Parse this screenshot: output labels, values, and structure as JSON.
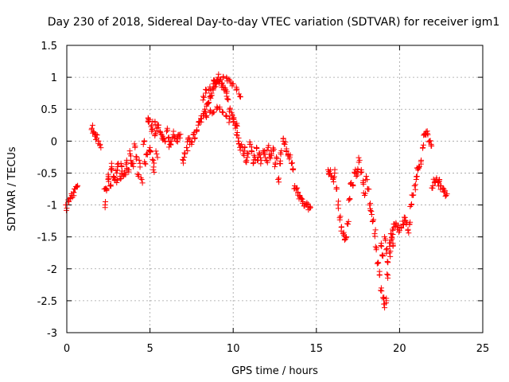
{
  "chart_data": {
    "type": "scatter",
    "title": "Day 230 of 2018, Sidereal Day-to-day VTEC variation (SDTVAR) for receiver igm1",
    "xlabel": "GPS time / hours",
    "ylabel": "SDTVAR / TECUs",
    "xlim": [
      0,
      25
    ],
    "ylim": [
      -3,
      1.5
    ],
    "xticks": [
      0,
      5,
      10,
      15,
      20,
      25
    ],
    "xtick_labels": [
      "0",
      "5",
      "10",
      "15",
      "20",
      "25"
    ],
    "yticks": [
      -3,
      -2.5,
      -2,
      -1.5,
      -1,
      -0.5,
      0,
      0.5,
      1,
      1.5
    ],
    "ytick_labels": [
      "-3",
      "-2.5",
      "-2",
      "-1.5",
      "-1",
      "-0.5",
      "0",
      "0.5",
      "1",
      "1.5"
    ],
    "grid": true,
    "marker": "+",
    "color": "#ff0000",
    "series": [
      {
        "name": "igm1",
        "x": [
          0.0,
          0.1,
          0.2,
          0.3,
          0.4,
          0.5,
          0.6,
          1.5,
          1.6,
          1.7,
          1.8,
          1.9,
          2.0,
          2.3,
          2.4,
          2.5,
          2.6,
          2.7,
          2.8,
          2.9,
          3.0,
          3.1,
          3.2,
          3.3,
          3.4,
          3.5,
          3.6,
          3.7,
          3.8,
          3.9,
          4.0,
          4.1,
          4.2,
          4.3,
          4.4,
          4.5,
          4.6,
          4.7,
          4.8,
          4.9,
          5.0,
          5.1,
          5.2,
          5.3,
          5.4,
          5.5,
          5.6,
          5.7,
          5.8,
          5.9,
          6.0,
          6.1,
          6.2,
          6.3,
          6.4,
          6.5,
          6.6,
          6.7,
          6.8,
          7.0,
          7.1,
          7.2,
          7.3,
          7.4,
          7.5,
          7.6,
          7.7,
          7.8,
          7.9,
          8.0,
          8.1,
          8.2,
          8.3,
          8.4,
          8.5,
          8.6,
          8.7,
          8.8,
          8.9,
          9.0,
          9.1,
          9.2,
          9.3,
          9.4,
          9.5,
          9.6,
          9.7,
          9.8,
          9.9,
          10.0,
          10.1,
          10.2,
          10.3,
          10.4,
          10.5,
          10.6,
          10.7,
          10.8,
          10.9,
          11.0,
          11.1,
          11.2,
          11.3,
          11.4,
          11.5,
          11.6,
          11.7,
          11.8,
          11.9,
          12.0,
          12.1,
          12.2,
          12.3,
          12.4,
          12.5,
          12.6,
          12.7,
          12.8,
          12.9,
          13.0,
          13.1,
          13.2,
          13.3,
          13.4,
          13.5,
          13.6,
          13.7,
          13.8,
          13.9,
          14.0,
          14.1,
          14.2,
          14.3,
          14.4,
          14.5,
          14.6,
          15.7,
          15.8,
          15.9,
          16.0,
          16.1,
          16.2,
          16.3,
          16.4,
          16.5,
          16.6,
          16.7,
          16.8,
          16.9,
          17.0,
          17.1,
          17.2,
          17.3,
          17.4,
          17.5,
          17.6,
          17.7,
          17.8,
          17.9,
          18.0,
          18.1,
          18.2,
          18.3,
          18.4,
          18.5,
          18.6,
          18.7,
          18.8,
          18.9,
          19.0,
          19.1,
          19.2,
          19.3,
          19.4,
          19.5,
          19.6,
          19.7,
          19.8,
          19.9,
          20.0,
          20.1,
          20.2,
          20.3,
          20.4,
          20.5,
          20.6,
          20.7,
          20.8,
          20.9,
          21.0,
          21.1,
          21.2,
          21.3,
          21.4,
          21.5,
          21.6,
          21.7,
          21.8,
          21.9,
          22.0,
          22.1,
          22.2,
          22.3,
          22.4,
          22.5,
          22.6,
          22.7,
          22.8,
          8.4,
          8.6,
          8.8,
          9.0,
          9.2,
          9.4,
          9.6,
          9.8,
          10.0,
          10.2,
          8.2,
          8.4,
          8.6,
          8.8,
          9.0,
          9.2,
          9.4,
          9.6,
          9.8,
          10.0,
          10.2,
          10.4,
          18.9,
          19.0,
          19.1,
          19.2,
          19.3,
          19.4,
          19.5,
          19.6,
          4.9,
          5.0,
          5.1,
          5.2,
          5.3,
          5.4,
          2.3,
          2.5,
          2.7,
          3.0,
          3.3,
          3.6
        ],
        "y": [
          -1.05,
          -0.95,
          -0.9,
          -0.85,
          -0.8,
          -0.75,
          -0.72,
          0.2,
          0.15,
          0.1,
          0.05,
          0.0,
          -0.05,
          -1.0,
          -0.75,
          -0.6,
          -0.7,
          -0.45,
          -0.55,
          -0.6,
          -0.5,
          -0.35,
          -0.55,
          -0.4,
          -0.55,
          -0.5,
          -0.3,
          -0.45,
          -0.2,
          -0.35,
          -0.4,
          -0.1,
          -0.25,
          -0.55,
          -0.35,
          -0.6,
          -0.05,
          -0.35,
          -0.2,
          0.3,
          -0.15,
          0.25,
          -0.45,
          0.3,
          0.2,
          0.25,
          0.15,
          0.1,
          0.05,
          0.0,
          0.15,
          0.05,
          -0.05,
          0.0,
          0.1,
          0.05,
          0.0,
          0.1,
          0.05,
          -0.3,
          -0.2,
          -0.1,
          0.05,
          0.0,
          -0.05,
          0.1,
          0.05,
          0.15,
          0.25,
          0.3,
          0.35,
          0.4,
          0.5,
          0.55,
          0.6,
          0.7,
          0.75,
          0.8,
          0.9,
          0.95,
          1.0,
          0.95,
          0.9,
          0.85,
          0.8,
          0.75,
          0.65,
          0.5,
          0.45,
          0.35,
          0.25,
          0.1,
          0.0,
          -0.1,
          -0.05,
          -0.2,
          -0.1,
          -0.3,
          -0.2,
          -0.05,
          -0.15,
          -0.35,
          -0.25,
          -0.1,
          -0.25,
          -0.2,
          -0.3,
          -0.15,
          -0.2,
          -0.3,
          -0.1,
          -0.25,
          -0.2,
          -0.15,
          -0.4,
          -0.25,
          -0.6,
          -0.35,
          -0.15,
          0.0,
          -0.05,
          -0.15,
          -0.2,
          -0.25,
          -0.35,
          -0.45,
          -0.7,
          -0.75,
          -0.8,
          -0.85,
          -0.9,
          -0.95,
          -0.98,
          -1.0,
          -1.03,
          -1.05,
          -0.45,
          -0.5,
          -0.55,
          -0.6,
          -0.5,
          -0.75,
          -1.0,
          -1.2,
          -1.35,
          -1.45,
          -1.55,
          -1.5,
          -1.3,
          -0.9,
          -0.65,
          -0.7,
          -0.5,
          -0.55,
          -0.45,
          -0.3,
          -0.45,
          -0.65,
          -0.85,
          -0.55,
          -0.75,
          -1.0,
          -1.1,
          -1.25,
          -1.45,
          -1.7,
          -1.9,
          -2.1,
          -2.3,
          -2.45,
          -2.55,
          -2.5,
          -2.1,
          -1.75,
          -1.55,
          -1.4,
          -1.3,
          -1.3,
          -1.35,
          -1.4,
          -1.35,
          -1.3,
          -1.25,
          -1.3,
          -1.4,
          -1.3,
          -1.0,
          -0.85,
          -0.7,
          -0.6,
          -0.45,
          -0.4,
          -0.3,
          -0.1,
          0.1,
          0.15,
          0.1,
          0.0,
          -0.05,
          -0.7,
          -0.65,
          -0.6,
          -0.65,
          -0.6,
          -0.7,
          -0.75,
          -0.8,
          -0.85,
          0.4,
          0.45,
          0.45,
          0.5,
          0.5,
          0.45,
          0.4,
          0.35,
          0.3,
          0.25,
          0.7,
          0.8,
          0.85,
          0.9,
          0.92,
          0.95,
          1.0,
          1.0,
          0.95,
          0.9,
          0.8,
          0.7,
          -1.6,
          -1.8,
          -1.5,
          -1.7,
          -1.9,
          -1.65,
          -1.45,
          -1.6,
          0.35,
          -0.1,
          0.15,
          -0.3,
          0.1,
          -0.2,
          -0.75,
          -0.55,
          -0.4,
          -0.65,
          -0.5,
          -0.45
        ]
      }
    ]
  }
}
